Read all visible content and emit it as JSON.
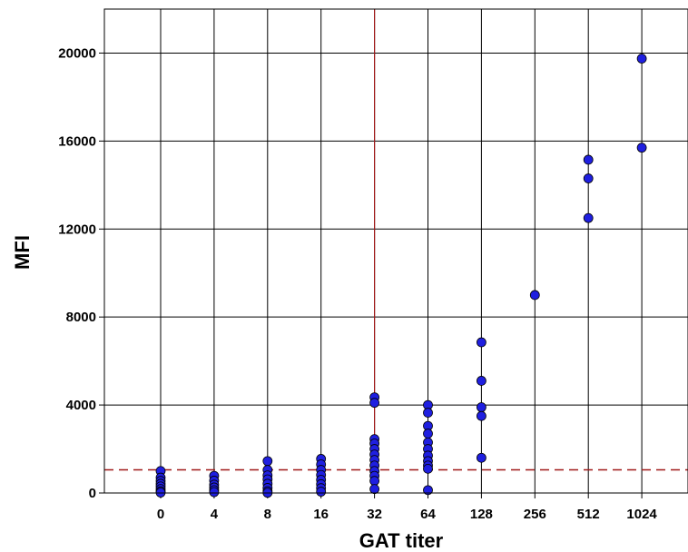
{
  "chart_data": {
    "type": "scatter",
    "title": "",
    "xlabel": "GAT titer",
    "ylabel": "MFI",
    "categories": [
      "0",
      "4",
      "8",
      "16",
      "32",
      "64",
      "128",
      "256",
      "512",
      "1024"
    ],
    "ylim": [
      0,
      22000
    ],
    "yticks": [
      0,
      4000,
      8000,
      12000,
      16000,
      20000
    ],
    "grid": true,
    "colors": {
      "point": "#1f1fe0",
      "point_stroke": "#000000",
      "reference_line": "#a01818"
    },
    "reference_lines": {
      "x_category": "32",
      "y_value": 1050
    },
    "points": [
      {
        "x": "0",
        "y": 1000
      },
      {
        "x": "0",
        "y": 700
      },
      {
        "x": "0",
        "y": 550
      },
      {
        "x": "0",
        "y": 420
      },
      {
        "x": "0",
        "y": 300
      },
      {
        "x": "0",
        "y": 180
      },
      {
        "x": "0",
        "y": 80
      },
      {
        "x": "0",
        "y": 20
      },
      {
        "x": "4",
        "y": 780
      },
      {
        "x": "4",
        "y": 560
      },
      {
        "x": "4",
        "y": 380
      },
      {
        "x": "4",
        "y": 250
      },
      {
        "x": "4",
        "y": 130
      },
      {
        "x": "4",
        "y": 40
      },
      {
        "x": "8",
        "y": 1450
      },
      {
        "x": "8",
        "y": 1050
      },
      {
        "x": "8",
        "y": 800
      },
      {
        "x": "8",
        "y": 620
      },
      {
        "x": "8",
        "y": 420
      },
      {
        "x": "8",
        "y": 230
      },
      {
        "x": "8",
        "y": 80
      },
      {
        "x": "8",
        "y": 10
      },
      {
        "x": "16",
        "y": 1550
      },
      {
        "x": "16",
        "y": 1300
      },
      {
        "x": "16",
        "y": 1050
      },
      {
        "x": "16",
        "y": 820
      },
      {
        "x": "16",
        "y": 600
      },
      {
        "x": "16",
        "y": 400
      },
      {
        "x": "16",
        "y": 220
      },
      {
        "x": "16",
        "y": 60
      },
      {
        "x": "32",
        "y": 4350
      },
      {
        "x": "32",
        "y": 4100
      },
      {
        "x": "32",
        "y": 2450
      },
      {
        "x": "32",
        "y": 2250
      },
      {
        "x": "32",
        "y": 2000
      },
      {
        "x": "32",
        "y": 1750
      },
      {
        "x": "32",
        "y": 1500
      },
      {
        "x": "32",
        "y": 1250
      },
      {
        "x": "32",
        "y": 1000
      },
      {
        "x": "32",
        "y": 780
      },
      {
        "x": "32",
        "y": 550
      },
      {
        "x": "32",
        "y": 180
      },
      {
        "x": "64",
        "y": 4000
      },
      {
        "x": "64",
        "y": 3650
      },
      {
        "x": "64",
        "y": 3050
      },
      {
        "x": "64",
        "y": 2700
      },
      {
        "x": "64",
        "y": 2300
      },
      {
        "x": "64",
        "y": 2000
      },
      {
        "x": "64",
        "y": 1700
      },
      {
        "x": "64",
        "y": 1450
      },
      {
        "x": "64",
        "y": 1250
      },
      {
        "x": "64",
        "y": 1100
      },
      {
        "x": "64",
        "y": 130
      },
      {
        "x": "128",
        "y": 6850
      },
      {
        "x": "128",
        "y": 5100
      },
      {
        "x": "128",
        "y": 3900
      },
      {
        "x": "128",
        "y": 3500
      },
      {
        "x": "128",
        "y": 1600
      },
      {
        "x": "256",
        "y": 9000
      },
      {
        "x": "512",
        "y": 15150
      },
      {
        "x": "512",
        "y": 14300
      },
      {
        "x": "512",
        "y": 12500
      },
      {
        "x": "1024",
        "y": 19750
      },
      {
        "x": "1024",
        "y": 15700
      }
    ]
  }
}
